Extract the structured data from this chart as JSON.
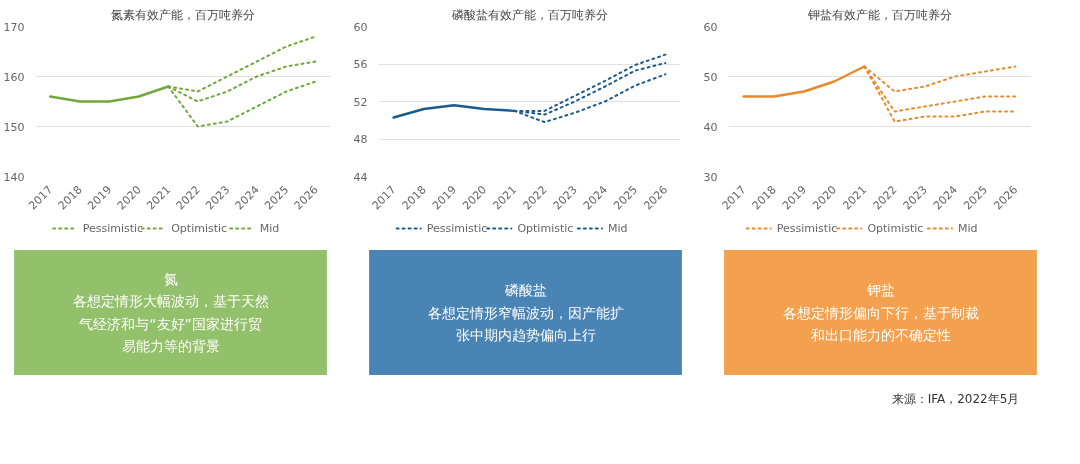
{
  "chart_data": [
    {
      "type": "line",
      "title": "氮素有效产能，百万吨养分",
      "categories": [
        "2017",
        "2018",
        "2019",
        "2020",
        "2021",
        "2022",
        "2023",
        "2024",
        "2025",
        "2026"
      ],
      "ylim": [
        140,
        170
      ],
      "yticks": [
        140,
        150,
        160,
        170
      ],
      "grid": "y",
      "legend": "bottom",
      "series": [
        {
          "color": "#72a83a",
          "line_style": "solid",
          "values": [
            156,
            155,
            155,
            156,
            158,
            null,
            null,
            null,
            null,
            null
          ]
        },
        {
          "name": "Pessimistic",
          "color": "#72a83a",
          "line_style": "dotted",
          "values": [
            null,
            null,
            null,
            null,
            158,
            150,
            151,
            154,
            157,
            159
          ]
        },
        {
          "name": "Optimistic",
          "color": "#72a83a",
          "line_style": "dotted",
          "values": [
            null,
            null,
            null,
            null,
            158,
            157,
            160,
            163,
            166,
            168
          ]
        },
        {
          "name": "Mid",
          "color": "#72a83a",
          "line_style": "dotted",
          "values": [
            null,
            null,
            null,
            null,
            158,
            155,
            157,
            160,
            162,
            163
          ]
        }
      ]
    },
    {
      "type": "line",
      "title": "磷酸盐有效产能，百万吨养分",
      "categories": [
        "2017",
        "2018",
        "2019",
        "2020",
        "2021",
        "2022",
        "2023",
        "2024",
        "2025",
        "2026"
      ],
      "ylim": [
        44,
        60
      ],
      "yticks": [
        44,
        48,
        52,
        56,
        60
      ],
      "grid": "y",
      "legend": "bottom",
      "series": [
        {
          "color": "#1d5a8c",
          "line_style": "solid",
          "values": [
            50.3,
            51.2,
            51.6,
            51.2,
            51.0,
            null,
            null,
            null,
            null,
            null
          ]
        },
        {
          "name": "Pessimistic",
          "color": "#1d5a8c",
          "line_style": "dotted",
          "values": [
            null,
            null,
            null,
            null,
            51.0,
            49.8,
            50.8,
            52.0,
            53.7,
            54.9
          ]
        },
        {
          "name": "Optimistic",
          "color": "#1d5a8c",
          "line_style": "dotted",
          "values": [
            null,
            null,
            null,
            null,
            51.0,
            51.0,
            52.6,
            54.2,
            55.9,
            57.0
          ]
        },
        {
          "name": "Mid",
          "color": "#1d5a8c",
          "line_style": "dotted",
          "values": [
            null,
            null,
            null,
            null,
            51.0,
            50.6,
            52.0,
            53.6,
            55.3,
            56.1
          ]
        }
      ]
    },
    {
      "type": "line",
      "title": "钾盐有效产能，百万吨养分",
      "categories": [
        "2017",
        "2018",
        "2019",
        "2020",
        "2021",
        "2022",
        "2023",
        "2024",
        "2025",
        "2026"
      ],
      "ylim": [
        30,
        60
      ],
      "yticks": [
        30,
        40,
        50,
        60
      ],
      "grid": "y",
      "legend": "bottom",
      "series": [
        {
          "color": "#e8892b",
          "line_style": "solid",
          "values": [
            46,
            46,
            47,
            49,
            52,
            null,
            null,
            null,
            null,
            null
          ]
        },
        {
          "name": "Pessimistic",
          "color": "#e8892b",
          "line_style": "dotted",
          "values": [
            null,
            null,
            null,
            null,
            52,
            41,
            42,
            42,
            43,
            43
          ]
        },
        {
          "name": "Optimistic",
          "color": "#e8892b",
          "line_style": "dotted",
          "values": [
            null,
            null,
            null,
            null,
            52,
            47,
            48,
            50,
            51,
            52
          ]
        },
        {
          "name": "Mid",
          "color": "#e8892b",
          "line_style": "dotted",
          "values": [
            null,
            null,
            null,
            null,
            52,
            43,
            44,
            45,
            46,
            46
          ]
        }
      ]
    },
    {
      "type": "other",
      "title": "氮",
      "color": "#93c06a",
      "annotations": [
        "各想定情形大幅波动，基于天然气经济和与“友好”国家进行贸易能力等的背景"
      ]
    },
    {
      "type": "other",
      "title": "磷酸盐",
      "color": "#4a84b4",
      "annotations": [
        "各想定情形窄幅波动，因产能扩张中期内趋势偏向上行"
      ]
    },
    {
      "type": "other",
      "title": "钾盐",
      "color": "#f3a04f",
      "annotations": [
        "各想定情形偏向下行，基于制裁和出口能力的不确定性"
      ]
    },
    {
      "type": "other",
      "annotations": [
        "来源：IFA，2022年5月"
      ]
    }
  ]
}
